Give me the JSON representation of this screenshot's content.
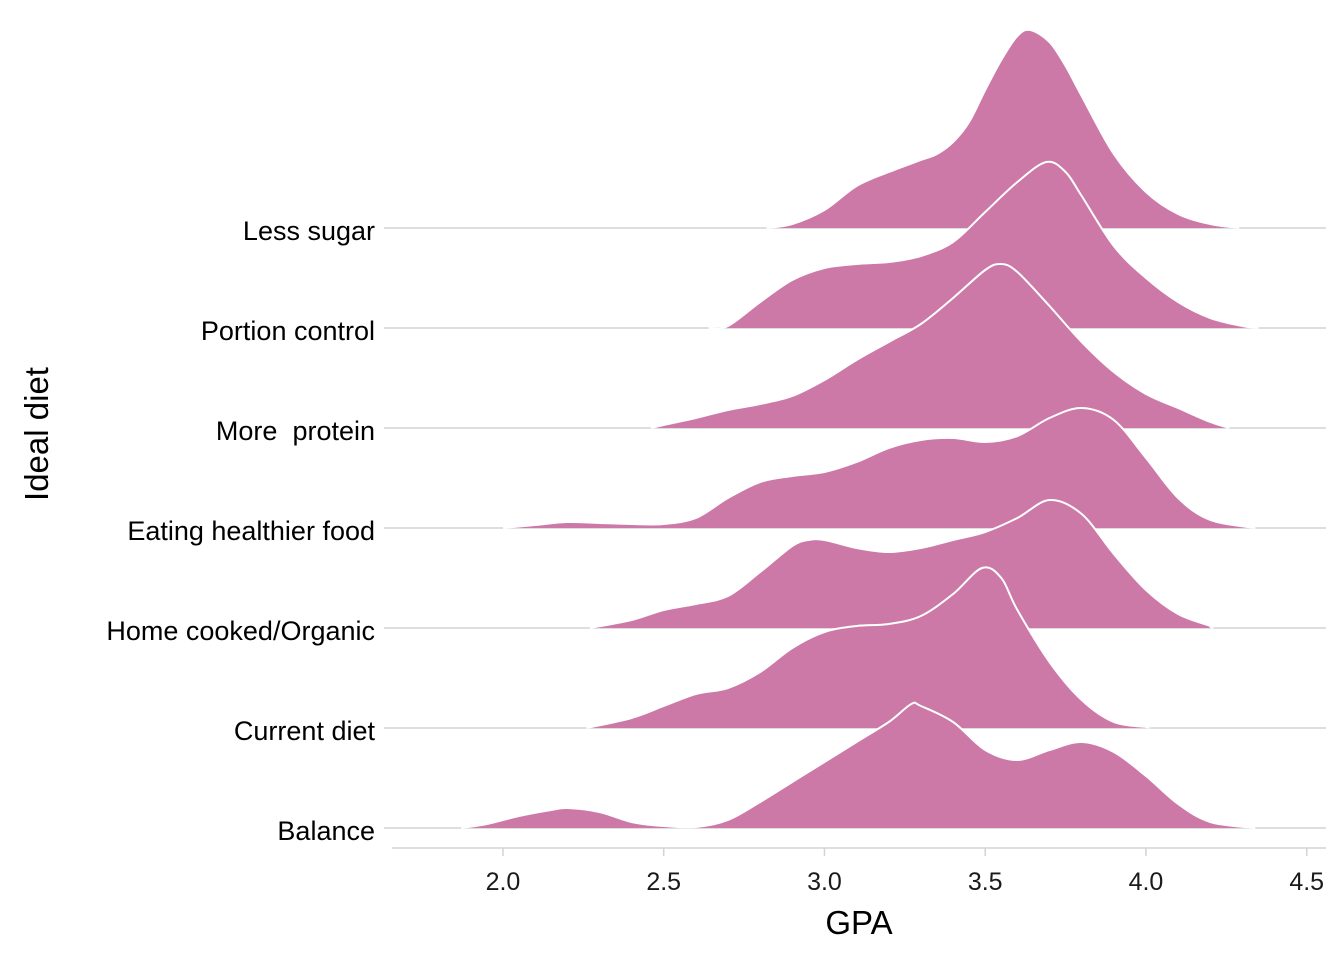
{
  "chart_data": {
    "type": "ridgeline",
    "xlabel": "GPA",
    "ylabel": "Ideal diet",
    "xlim": [
      1.63,
      4.56
    ],
    "x_ticks": [
      2.0,
      2.5,
      3.0,
      3.5,
      4.0,
      4.5
    ],
    "x_tick_labels": [
      "2.0",
      "2.5",
      "3.0",
      "3.5",
      "4.0",
      "4.5"
    ],
    "fill_color": "#cc79a7",
    "outline_color": "#ffffff",
    "baseline_color": "#d3d3d3",
    "axis_color": "#d3d3d3",
    "grid": false,
    "density_scale_note": "y values are relative density heights in units of one row spacing",
    "categories": [
      "Less sugar",
      "Portion control",
      "More  protein",
      "Eating healthier food",
      "Home cooked/Organic",
      "Current diet",
      "Balance"
    ],
    "series": [
      {
        "name": "Less sugar",
        "points": [
          [
            2.82,
            0
          ],
          [
            2.9,
            0.04
          ],
          [
            3.0,
            0.18
          ],
          [
            3.1,
            0.42
          ],
          [
            3.2,
            0.56
          ],
          [
            3.3,
            0.68
          ],
          [
            3.35,
            0.74
          ],
          [
            3.4,
            0.86
          ],
          [
            3.45,
            1.06
          ],
          [
            3.5,
            1.38
          ],
          [
            3.55,
            1.68
          ],
          [
            3.6,
            1.92
          ],
          [
            3.64,
            1.98
          ],
          [
            3.7,
            1.86
          ],
          [
            3.75,
            1.62
          ],
          [
            3.8,
            1.32
          ],
          [
            3.9,
            0.74
          ],
          [
            4.0,
            0.36
          ],
          [
            4.1,
            0.14
          ],
          [
            4.2,
            0.04
          ],
          [
            4.29,
            0
          ]
        ]
      },
      {
        "name": "Portion control",
        "points": [
          [
            2.64,
            0
          ],
          [
            2.7,
            0.02
          ],
          [
            2.8,
            0.26
          ],
          [
            2.9,
            0.48
          ],
          [
            3.0,
            0.6
          ],
          [
            3.1,
            0.64
          ],
          [
            3.2,
            0.66
          ],
          [
            3.3,
            0.72
          ],
          [
            3.4,
            0.86
          ],
          [
            3.5,
            1.16
          ],
          [
            3.6,
            1.46
          ],
          [
            3.69,
            1.66
          ],
          [
            3.75,
            1.56
          ],
          [
            3.8,
            1.32
          ],
          [
            3.9,
            0.82
          ],
          [
            4.0,
            0.5
          ],
          [
            4.1,
            0.26
          ],
          [
            4.2,
            0.1
          ],
          [
            4.3,
            0.02
          ],
          [
            4.35,
            0
          ]
        ]
      },
      {
        "name": "More  protein",
        "points": [
          [
            2.46,
            0
          ],
          [
            2.5,
            0.03
          ],
          [
            2.6,
            0.1
          ],
          [
            2.7,
            0.18
          ],
          [
            2.8,
            0.24
          ],
          [
            2.9,
            0.32
          ],
          [
            3.0,
            0.48
          ],
          [
            3.1,
            0.68
          ],
          [
            3.2,
            0.86
          ],
          [
            3.3,
            1.04
          ],
          [
            3.4,
            1.3
          ],
          [
            3.5,
            1.58
          ],
          [
            3.55,
            1.64
          ],
          [
            3.6,
            1.56
          ],
          [
            3.7,
            1.22
          ],
          [
            3.8,
            0.86
          ],
          [
            3.9,
            0.56
          ],
          [
            4.0,
            0.34
          ],
          [
            4.1,
            0.2
          ],
          [
            4.2,
            0.06
          ],
          [
            4.26,
            0
          ]
        ]
      },
      {
        "name": "Eating healthier food",
        "points": [
          [
            2.0,
            0
          ],
          [
            2.1,
            0.03
          ],
          [
            2.2,
            0.06
          ],
          [
            2.3,
            0.05
          ],
          [
            2.4,
            0.04
          ],
          [
            2.5,
            0.04
          ],
          [
            2.6,
            0.1
          ],
          [
            2.7,
            0.3
          ],
          [
            2.8,
            0.46
          ],
          [
            2.9,
            0.52
          ],
          [
            3.0,
            0.56
          ],
          [
            3.1,
            0.66
          ],
          [
            3.2,
            0.8
          ],
          [
            3.3,
            0.88
          ],
          [
            3.4,
            0.9
          ],
          [
            3.5,
            0.86
          ],
          [
            3.6,
            0.92
          ],
          [
            3.7,
            1.1
          ],
          [
            3.8,
            1.2
          ],
          [
            3.9,
            1.08
          ],
          [
            4.0,
            0.7
          ],
          [
            4.1,
            0.3
          ],
          [
            4.2,
            0.08
          ],
          [
            4.34,
            0
          ]
        ]
      },
      {
        "name": "Home cooked/Organic",
        "points": [
          [
            2.27,
            0
          ],
          [
            2.4,
            0.08
          ],
          [
            2.5,
            0.18
          ],
          [
            2.6,
            0.24
          ],
          [
            2.7,
            0.32
          ],
          [
            2.8,
            0.56
          ],
          [
            2.9,
            0.82
          ],
          [
            2.95,
            0.88
          ],
          [
            3.0,
            0.88
          ],
          [
            3.1,
            0.8
          ],
          [
            3.2,
            0.76
          ],
          [
            3.3,
            0.8
          ],
          [
            3.4,
            0.88
          ],
          [
            3.5,
            0.96
          ],
          [
            3.6,
            1.1
          ],
          [
            3.7,
            1.28
          ],
          [
            3.8,
            1.14
          ],
          [
            3.9,
            0.74
          ],
          [
            4.0,
            0.38
          ],
          [
            4.1,
            0.14
          ],
          [
            4.2,
            0.02
          ],
          [
            4.2,
            0
          ]
        ]
      },
      {
        "name": "Current diet",
        "points": [
          [
            2.26,
            0
          ],
          [
            2.4,
            0.1
          ],
          [
            2.5,
            0.22
          ],
          [
            2.6,
            0.34
          ],
          [
            2.7,
            0.4
          ],
          [
            2.8,
            0.56
          ],
          [
            2.9,
            0.8
          ],
          [
            3.0,
            0.96
          ],
          [
            3.1,
            1.02
          ],
          [
            3.2,
            1.04
          ],
          [
            3.3,
            1.12
          ],
          [
            3.4,
            1.34
          ],
          [
            3.49,
            1.6
          ],
          [
            3.55,
            1.5
          ],
          [
            3.6,
            1.18
          ],
          [
            3.7,
            0.66
          ],
          [
            3.8,
            0.28
          ],
          [
            3.9,
            0.06
          ],
          [
            4.0,
            0.01
          ],
          [
            4.01,
            0
          ]
        ]
      },
      {
        "name": "Balance",
        "points": [
          [
            1.87,
            0
          ],
          [
            1.95,
            0.04
          ],
          [
            2.05,
            0.12
          ],
          [
            2.15,
            0.18
          ],
          [
            2.2,
            0.2
          ],
          [
            2.3,
            0.16
          ],
          [
            2.4,
            0.06
          ],
          [
            2.5,
            0.02
          ],
          [
            2.6,
            0.01
          ],
          [
            2.7,
            0.08
          ],
          [
            2.8,
            0.26
          ],
          [
            2.9,
            0.46
          ],
          [
            3.0,
            0.66
          ],
          [
            3.1,
            0.86
          ],
          [
            3.2,
            1.06
          ],
          [
            3.27,
            1.24
          ],
          [
            3.3,
            1.22
          ],
          [
            3.4,
            1.06
          ],
          [
            3.5,
            0.78
          ],
          [
            3.6,
            0.68
          ],
          [
            3.7,
            0.78
          ],
          [
            3.8,
            0.86
          ],
          [
            3.9,
            0.76
          ],
          [
            4.0,
            0.52
          ],
          [
            4.1,
            0.24
          ],
          [
            4.2,
            0.06
          ],
          [
            4.34,
            0
          ]
        ]
      }
    ]
  }
}
